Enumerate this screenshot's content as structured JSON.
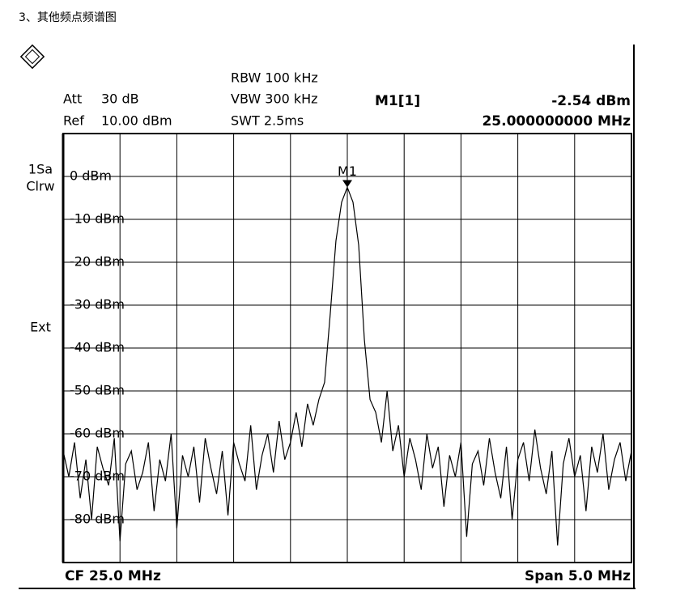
{
  "heading": "3、其他频点频谱图",
  "chart_data": {
    "type": "line",
    "settings": [
      {
        "label": "Att",
        "value": "30 dB"
      },
      {
        "label": "Ref",
        "value": "10.00 dBm"
      }
    ],
    "bandwidth": [
      "RBW 100 kHz",
      "VBW 300 kHz",
      "SWT 2.5ms"
    ],
    "side_labels": [
      "1Sa",
      "Clrw",
      "Ext"
    ],
    "marker": {
      "name": "M1[1]",
      "label": "M1",
      "x": 25.0,
      "x_label": "25.000000000 MHz",
      "value": -2.54,
      "value_label": "-2.54 dBm"
    },
    "footer_left": "CF 25.0 MHz",
    "footer_right": "Span 5.0 MHz",
    "color": "#000000",
    "grid": true,
    "xlim": [
      22.5,
      27.5
    ],
    "ylim": [
      -90,
      10
    ],
    "yticks": [
      {
        "value": 0,
        "label": "0 dBm"
      },
      {
        "value": -10,
        "label": "-10 dBm"
      },
      {
        "value": -20,
        "label": "-20 dBm"
      },
      {
        "value": -30,
        "label": "-30 dBm"
      },
      {
        "value": -40,
        "label": "-40 dBm"
      },
      {
        "value": -50,
        "label": "-50 dBm"
      },
      {
        "value": -60,
        "label": "-60 dBm"
      },
      {
        "value": -70,
        "label": "-70 dBm"
      },
      {
        "value": -80,
        "label": "-80 dBm"
      }
    ],
    "x": [
      22.5,
      22.55,
      22.6,
      22.65,
      22.7,
      22.75,
      22.8,
      22.85,
      22.9,
      22.95,
      23.0,
      23.05,
      23.1,
      23.15,
      23.2,
      23.25,
      23.3,
      23.35,
      23.4,
      23.45,
      23.5,
      23.55,
      23.6,
      23.65,
      23.7,
      23.75,
      23.8,
      23.85,
      23.9,
      23.95,
      24.0,
      24.05,
      24.1,
      24.15,
      24.2,
      24.25,
      24.3,
      24.35,
      24.4,
      24.45,
      24.5,
      24.55,
      24.6,
      24.65,
      24.7,
      24.75,
      24.8,
      24.85,
      24.9,
      24.95,
      25.0,
      25.05,
      25.1,
      25.15,
      25.2,
      25.25,
      25.3,
      25.35,
      25.4,
      25.45,
      25.5,
      25.55,
      25.6,
      25.65,
      25.7,
      25.75,
      25.8,
      25.85,
      25.9,
      25.95,
      26.0,
      26.05,
      26.1,
      26.15,
      26.2,
      26.25,
      26.3,
      26.35,
      26.4,
      26.45,
      26.5,
      26.55,
      26.6,
      26.65,
      26.7,
      26.75,
      26.8,
      26.85,
      26.9,
      26.95,
      27.0,
      27.05,
      27.1,
      27.15,
      27.2,
      27.25,
      27.3,
      27.35,
      27.4,
      27.45,
      27.5
    ],
    "values": [
      -64,
      -70,
      -62,
      -75,
      -66,
      -80,
      -63,
      -68,
      -72,
      -61,
      -85,
      -67,
      -64,
      -73,
      -69,
      -62,
      -78,
      -66,
      -71,
      -60,
      -82,
      -65,
      -70,
      -63,
      -76,
      -61,
      -68,
      -74,
      -64,
      -79,
      -62,
      -67,
      -71,
      -58,
      -73,
      -65,
      -60,
      -69,
      -57,
      -66,
      -62,
      -55,
      -63,
      -53,
      -58,
      -52,
      -48,
      -32,
      -15,
      -6,
      -2.54,
      -6,
      -16,
      -38,
      -52,
      -55,
      -62,
      -50,
      -64,
      -58,
      -70,
      -61,
      -66,
      -73,
      -60,
      -68,
      -63,
      -77,
      -65,
      -70,
      -62,
      -84,
      -67,
      -64,
      -72,
      -61,
      -69,
      -75,
      -63,
      -80,
      -66,
      -62,
      -71,
      -59,
      -68,
      -74,
      -64,
      -86,
      -67,
      -61,
      -70,
      -65,
      -78,
      -63,
      -69,
      -60,
      -73,
      -66,
      -62,
      -71,
      -64
    ]
  }
}
